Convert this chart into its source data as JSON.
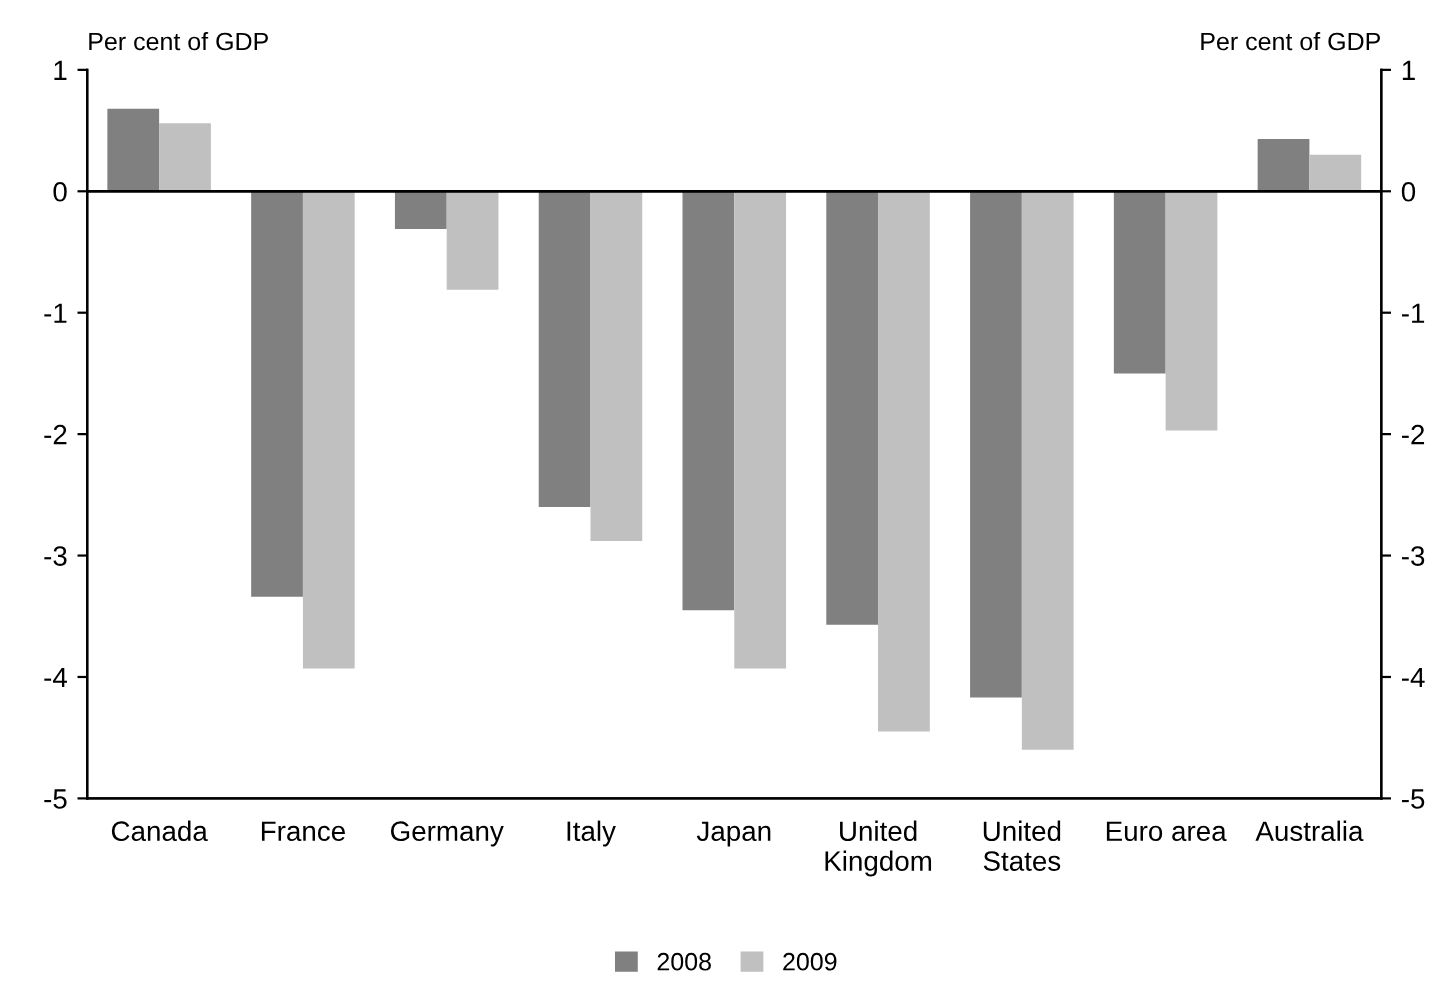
{
  "chart_data": {
    "type": "bar",
    "ylabel": "Per cent of GDP",
    "y2label": "Per cent of GDP",
    "categories": [
      "Canada",
      "France",
      "Germany",
      "Italy",
      "Japan",
      "United Kingdom",
      "United States",
      "Euro area",
      "Australia"
    ],
    "series": [
      {
        "name": "2008",
        "color": "#808080",
        "values": [
          0.68,
          -3.34,
          -0.31,
          -2.6,
          -3.45,
          -3.57,
          -4.17,
          -1.5,
          0.43
        ]
      },
      {
        "name": "2009",
        "color": "#c0c0c0",
        "values": [
          0.56,
          -3.93,
          -0.81,
          -2.88,
          -3.93,
          -4.45,
          -4.6,
          -1.97,
          0.3
        ]
      }
    ],
    "ylim": [
      -5,
      1
    ],
    "yticks": [
      -5,
      -4,
      -3,
      -2,
      -1,
      0,
      1
    ],
    "y2lim": [
      -5,
      1
    ],
    "y2ticks": [
      -5,
      -4,
      -3,
      -2,
      -1,
      0,
      1
    ],
    "ref_lines": [
      {
        "axis": "y",
        "value": 0,
        "color": "#000000"
      }
    ],
    "grid": false,
    "legend": "bottom"
  }
}
